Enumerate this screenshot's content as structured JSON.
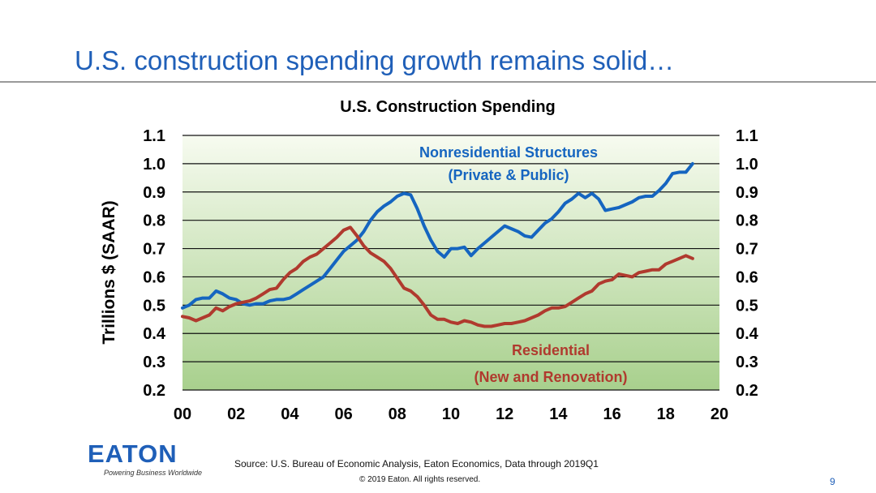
{
  "slide": {
    "title": "U.S. construction spending growth remains solid…",
    "source": "Source: U.S. Bureau of Economic Analysis, Eaton Economics, Data through 2019Q1",
    "copyright": "© 2019 Eaton. All rights reserved.",
    "page_number": "9",
    "logo_text": "EATON",
    "logo_tagline": "Powering Business Worldwide"
  },
  "colors": {
    "title": "#1f5fb8",
    "nonresidential": "#1565c0",
    "residential": "#b03a2e",
    "plot_top": "#f7fbf0",
    "plot_bottom": "#a8d08d"
  },
  "chart_data": {
    "type": "line",
    "title": "U.S. Construction Spending",
    "ylabel": "Trillions $ (SAAR)",
    "xlabel": "",
    "xlim": [
      2000,
      2020
    ],
    "ylim": [
      0.2,
      1.1
    ],
    "xticks": [
      "00",
      "02",
      "04",
      "06",
      "08",
      "10",
      "12",
      "14",
      "16",
      "18",
      "20"
    ],
    "yticks": [
      "0.2",
      "0.3",
      "0.4",
      "0.5",
      "0.6",
      "0.7",
      "0.8",
      "0.9",
      "1.0",
      "1.1"
    ],
    "grid": "horizontal",
    "dual_y_axis": true,
    "series": [
      {
        "name": "Nonresidential Structures",
        "name_line2": "(Private & Public)",
        "color": "#1565c0",
        "x": [
          2000.0,
          2000.25,
          2000.5,
          2000.75,
          2001.0,
          2001.25,
          2001.5,
          2001.75,
          2002.0,
          2002.25,
          2002.5,
          2002.75,
          2003.0,
          2003.25,
          2003.5,
          2003.75,
          2004.0,
          2004.25,
          2004.5,
          2004.75,
          2005.0,
          2005.25,
          2005.5,
          2005.75,
          2006.0,
          2006.25,
          2006.5,
          2006.75,
          2007.0,
          2007.25,
          2007.5,
          2007.75,
          2008.0,
          2008.25,
          2008.5,
          2008.75,
          2009.0,
          2009.25,
          2009.5,
          2009.75,
          2010.0,
          2010.25,
          2010.5,
          2010.75,
          2011.0,
          2011.25,
          2011.5,
          2011.75,
          2012.0,
          2012.25,
          2012.5,
          2012.75,
          2013.0,
          2013.25,
          2013.5,
          2013.75,
          2014.0,
          2014.25,
          2014.5,
          2014.75,
          2015.0,
          2015.25,
          2015.5,
          2015.75,
          2016.0,
          2016.25,
          2016.5,
          2016.75,
          2017.0,
          2017.25,
          2017.5,
          2017.75,
          2018.0,
          2018.25,
          2018.5,
          2018.75,
          2019.0
        ],
        "values": [
          0.49,
          0.5,
          0.52,
          0.525,
          0.525,
          0.55,
          0.54,
          0.525,
          0.52,
          0.505,
          0.5,
          0.505,
          0.505,
          0.515,
          0.52,
          0.52,
          0.525,
          0.54,
          0.555,
          0.57,
          0.585,
          0.6,
          0.63,
          0.66,
          0.69,
          0.71,
          0.73,
          0.76,
          0.8,
          0.83,
          0.85,
          0.865,
          0.885,
          0.895,
          0.89,
          0.84,
          0.78,
          0.73,
          0.69,
          0.67,
          0.7,
          0.7,
          0.705,
          0.675,
          0.7,
          0.72,
          0.74,
          0.76,
          0.78,
          0.77,
          0.76,
          0.745,
          0.74,
          0.765,
          0.79,
          0.805,
          0.83,
          0.86,
          0.875,
          0.895,
          0.88,
          0.895,
          0.875,
          0.835,
          0.84,
          0.845,
          0.855,
          0.865,
          0.88,
          0.885,
          0.885,
          0.905,
          0.93,
          0.965,
          0.97,
          0.97,
          1.0
        ]
      },
      {
        "name": "Residential",
        "name_line2": "(New and Renovation)",
        "color": "#b03a2e",
        "x": [
          2000.0,
          2000.25,
          2000.5,
          2000.75,
          2001.0,
          2001.25,
          2001.5,
          2001.75,
          2002.0,
          2002.25,
          2002.5,
          2002.75,
          2003.0,
          2003.25,
          2003.5,
          2003.75,
          2004.0,
          2004.25,
          2004.5,
          2004.75,
          2005.0,
          2005.25,
          2005.5,
          2005.75,
          2006.0,
          2006.25,
          2006.5,
          2006.75,
          2007.0,
          2007.25,
          2007.5,
          2007.75,
          2008.0,
          2008.25,
          2008.5,
          2008.75,
          2009.0,
          2009.25,
          2009.5,
          2009.75,
          2010.0,
          2010.25,
          2010.5,
          2010.75,
          2011.0,
          2011.25,
          2011.5,
          2011.75,
          2012.0,
          2012.25,
          2012.5,
          2012.75,
          2013.0,
          2013.25,
          2013.5,
          2013.75,
          2014.0,
          2014.25,
          2014.5,
          2014.75,
          2015.0,
          2015.25,
          2015.5,
          2015.75,
          2016.0,
          2016.25,
          2016.5,
          2016.75,
          2017.0,
          2017.25,
          2017.5,
          2017.75,
          2018.0,
          2018.25,
          2018.5,
          2018.75,
          2019.0
        ],
        "values": [
          0.46,
          0.455,
          0.445,
          0.455,
          0.465,
          0.49,
          0.48,
          0.495,
          0.505,
          0.51,
          0.515,
          0.525,
          0.54,
          0.555,
          0.56,
          0.59,
          0.615,
          0.63,
          0.655,
          0.67,
          0.68,
          0.7,
          0.72,
          0.74,
          0.765,
          0.775,
          0.745,
          0.71,
          0.685,
          0.67,
          0.655,
          0.63,
          0.595,
          0.56,
          0.55,
          0.53,
          0.5,
          0.465,
          0.45,
          0.45,
          0.44,
          0.435,
          0.445,
          0.44,
          0.43,
          0.425,
          0.425,
          0.43,
          0.435,
          0.435,
          0.44,
          0.445,
          0.455,
          0.465,
          0.48,
          0.49,
          0.49,
          0.495,
          0.51,
          0.525,
          0.54,
          0.55,
          0.575,
          0.585,
          0.59,
          0.61,
          0.605,
          0.6,
          0.615,
          0.62,
          0.625,
          0.625,
          0.645,
          0.655,
          0.665,
          0.675,
          0.665
        ]
      }
    ]
  }
}
